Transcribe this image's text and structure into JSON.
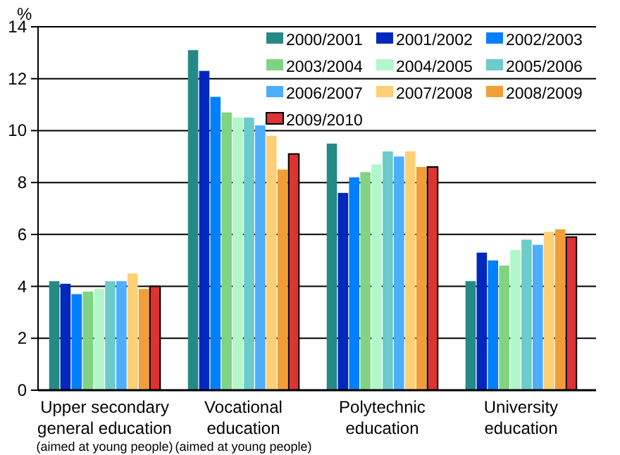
{
  "chart_data": {
    "type": "bar",
    "ylabel": "%",
    "categories": [
      "Upper secondary\ngeneral education\n(aimed at young people)",
      "Vocational\neducation\n(aimed at young people)",
      "Polytechnic\neducation",
      "University\neducation"
    ],
    "series": [
      {
        "name": "2000/2001",
        "color": "#258a87",
        "values": [
          4.2,
          13.1,
          9.5,
          4.2
        ]
      },
      {
        "name": "2001/2002",
        "color": "#0028be",
        "values": [
          4.1,
          12.3,
          7.6,
          5.3
        ]
      },
      {
        "name": "2002/2003",
        "color": "#0080ff",
        "values": [
          3.7,
          11.3,
          8.2,
          5.0
        ]
      },
      {
        "name": "2003/2004",
        "color": "#7fd484",
        "values": [
          3.8,
          10.7,
          8.4,
          4.8
        ]
      },
      {
        "name": "2004/2005",
        "color": "#b2f7c8",
        "values": [
          3.9,
          10.5,
          8.7,
          5.4
        ]
      },
      {
        "name": "2005/2006",
        "color": "#6ccbcb",
        "values": [
          4.2,
          10.5,
          9.2,
          5.8
        ]
      },
      {
        "name": "2006/2007",
        "color": "#4eaefc",
        "values": [
          4.2,
          10.2,
          9.0,
          5.6
        ]
      },
      {
        "name": "2007/2008",
        "color": "#ffcf75",
        "values": [
          4.5,
          9.8,
          9.2,
          6.1
        ]
      },
      {
        "name": "2008/2009",
        "color": "#f29e38",
        "values": [
          3.9,
          8.5,
          8.6,
          6.2
        ]
      },
      {
        "name": "2009/2010",
        "color": "#dd3333",
        "values": [
          4.0,
          9.1,
          8.6,
          5.9
        ]
      }
    ],
    "ylim": [
      0,
      14
    ],
    "yticks": [
      0,
      2,
      4,
      6,
      8,
      10,
      12,
      14
    ],
    "grid": "y",
    "legend": "top right"
  }
}
